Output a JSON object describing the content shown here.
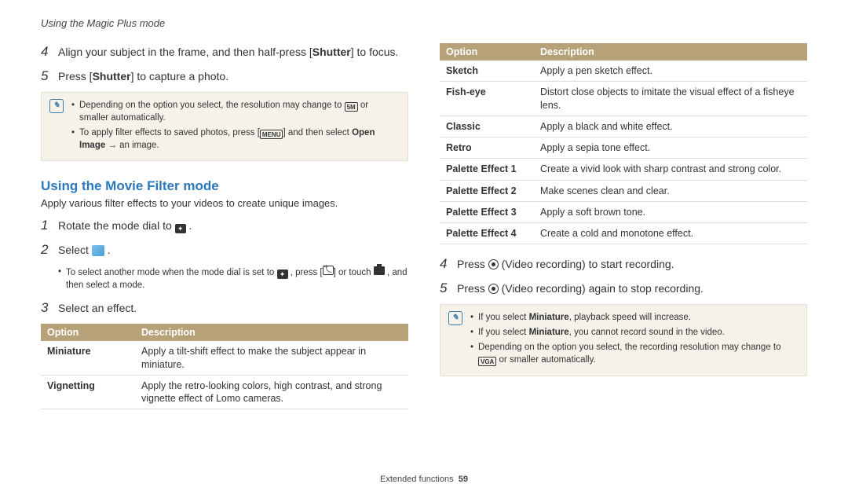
{
  "header": "Using the Magic Plus mode",
  "left": {
    "steps_a": [
      {
        "num": "4",
        "html": "Align your subject in the frame, and then half-press [<b>Shutter</b>] to focus."
      },
      {
        "num": "5",
        "html": "Press [<b>Shutter</b>] to capture a photo."
      }
    ],
    "note1": [
      "Depending on the option you select, the resolution may change to <span class='ico ico-box'>5M</span> or smaller automatically.",
      "To apply filter effects to saved photos, press [<span class='ico ico-box'>MENU</span>] and then select <b>Open Image</b> → an image."
    ],
    "section_heading": "Using the Movie Filter mode",
    "section_intro": "Apply various filter effects to your videos to create unique images.",
    "steps_b": [
      {
        "num": "1",
        "html": "Rotate the mode dial to <span class='ico ico-star'>✦</span> ."
      },
      {
        "num": "2",
        "html": "Select <span class='ico-blue'></span> ."
      }
    ],
    "sub_note": "To select another mode when the mode dial is set to <span class='ico ico-star'>✦</span> , press [<span class='ico-back'></span>] or touch <span class='ico-cam'></span> , and then select a mode.",
    "step3": {
      "num": "3",
      "html": "Select an effect."
    },
    "table_hdr": {
      "opt": "Option",
      "desc": "Description"
    },
    "table1": [
      {
        "opt": "Miniature",
        "desc": "Apply a tilt-shift effect to make the subject appear in miniature."
      },
      {
        "opt": "Vignetting",
        "desc": "Apply the retro-looking colors, high contrast, and strong vignette effect of Lomo cameras."
      }
    ]
  },
  "right": {
    "table2": [
      {
        "opt": "Sketch",
        "desc": "Apply a pen sketch effect."
      },
      {
        "opt": "Fish-eye",
        "desc": "Distort close objects to imitate the visual effect of a fisheye lens."
      },
      {
        "opt": "Classic",
        "desc": "Apply a black and white effect."
      },
      {
        "opt": "Retro",
        "desc": "Apply a sepia tone effect."
      },
      {
        "opt": "Palette Effect 1",
        "desc": "Create a vivid look with sharp contrast and strong color."
      },
      {
        "opt": "Palette Effect 2",
        "desc": "Make scenes clean and clear."
      },
      {
        "opt": "Palette Effect 3",
        "desc": "Apply a soft brown tone."
      },
      {
        "opt": "Palette Effect 4",
        "desc": "Create a cold and monotone effect."
      }
    ],
    "steps": [
      {
        "num": "4",
        "html": "Press <span class='ico-rec'></span> (Video recording) to start recording."
      },
      {
        "num": "5",
        "html": "Press <span class='ico-rec'></span> (Video recording) again to stop recording."
      }
    ],
    "note2": [
      "If you select <b>Miniature</b>, playback speed will increase.",
      "If you select <b>Miniature</b>, you cannot record sound in the video.",
      "Depending on the option you select, the recording resolution may change to <span class='ico ico-box'>VGA</span> or smaller automatically."
    ]
  },
  "footer": {
    "section": "Extended functions",
    "page": "59"
  },
  "colors": {
    "heading": "#2b78bd",
    "table_head": "#b6a179",
    "note_bg": "#f5f2ea"
  }
}
